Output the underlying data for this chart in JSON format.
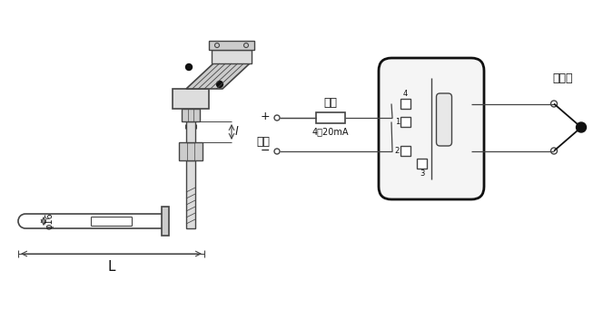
{
  "bg_color": "#ffffff",
  "line_color": "#444444",
  "dark_color": "#111111",
  "gray1": "#bbbbbb",
  "gray2": "#cccccc",
  "gray3": "#dddddd",
  "label_dianYuan": "电源",
  "label_fuzai": "负载",
  "label_re_dian_ou": "热电偶",
  "label_4_20mA": "4～20mA",
  "label_plus": "+",
  "label_minus": "−",
  "label_L": "L",
  "label_phi16": "φ16",
  "label_l": "l",
  "figsize": [
    6.75,
    3.52
  ],
  "dpi": 100
}
